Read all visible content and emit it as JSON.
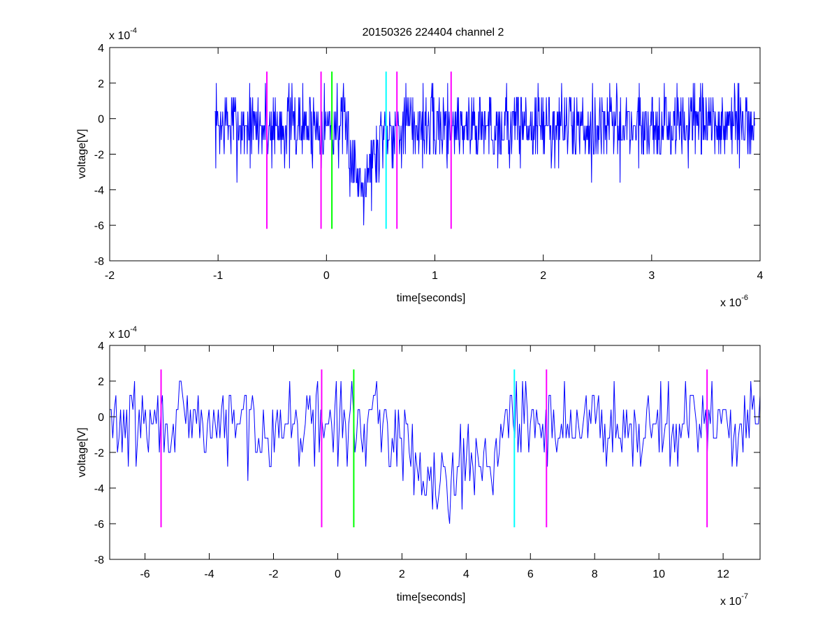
{
  "figure": {
    "title": "20150326 224404 channel 2"
  },
  "chart_data": [
    {
      "type": "line",
      "title": "20150326 224404 channel 2",
      "xlabel": "time[seconds]",
      "ylabel": "voltage[V]",
      "x_scale_label": "x 10",
      "x_scale_exp": "-6",
      "y_scale_label": "x 10",
      "y_scale_exp": "-4",
      "xlim": [
        -2,
        4
      ],
      "ylim": [
        -8,
        4
      ],
      "x_ticks": [
        -2,
        -1,
        0,
        1,
        2,
        3,
        4
      ],
      "y_ticks": [
        -8,
        -6,
        -4,
        -2,
        0,
        2,
        4
      ],
      "grid": false,
      "signal": {
        "color": "#0000ff",
        "x_start": -1.03,
        "x_end": 3.95,
        "baseline": -0.4,
        "noise": 1.1,
        "dip_start": 0.15,
        "dip_bottom": 0.3,
        "dip_end": 0.5,
        "dip_level": -3.5
      },
      "markers": [
        {
          "x": -0.55,
          "ymin": -6.2,
          "ymax": 2.65,
          "color": "#ff00ff"
        },
        {
          "x": -0.05,
          "ymin": -6.2,
          "ymax": 2.65,
          "color": "#ff00ff"
        },
        {
          "x": 0.05,
          "ymin": -6.2,
          "ymax": 2.65,
          "color": "#00ff00"
        },
        {
          "x": 0.55,
          "ymin": -6.2,
          "ymax": 2.65,
          "color": "#00ffff"
        },
        {
          "x": 0.65,
          "ymin": -6.2,
          "ymax": 2.65,
          "color": "#ff00ff"
        },
        {
          "x": 1.15,
          "ymin": -6.2,
          "ymax": 2.65,
          "color": "#ff00ff"
        }
      ]
    },
    {
      "type": "line",
      "title": "",
      "xlabel": "time[seconds]",
      "ylabel": "voltage[V]",
      "x_scale_label": "x 10",
      "x_scale_exp": "-7",
      "y_scale_label": "x 10",
      "y_scale_exp": "-4",
      "xlim": [
        -7.1,
        13.15
      ],
      "ylim": [
        -8,
        4
      ],
      "x_ticks": [
        -6,
        -4,
        -2,
        0,
        2,
        4,
        6,
        8,
        10,
        12
      ],
      "y_ticks": [
        -8,
        -6,
        -4,
        -2,
        0,
        2,
        4
      ],
      "grid": false,
      "signal": {
        "color": "#0000ff",
        "x_start": -7.1,
        "x_end": 13.15,
        "baseline": -0.4,
        "noise": 1.1,
        "dip_start": 1.5,
        "dip_bottom": 3.0,
        "dip_end": 5.0,
        "dip_level": -3.5
      },
      "markers": [
        {
          "x": -5.5,
          "ymin": -6.2,
          "ymax": 2.65,
          "color": "#ff00ff"
        },
        {
          "x": -0.5,
          "ymin": -6.2,
          "ymax": 2.65,
          "color": "#ff00ff"
        },
        {
          "x": 0.5,
          "ymin": -6.2,
          "ymax": 2.65,
          "color": "#00ff00"
        },
        {
          "x": 5.5,
          "ymin": -6.2,
          "ymax": 2.65,
          "color": "#00ffff"
        },
        {
          "x": 6.5,
          "ymin": -6.2,
          "ymax": 2.65,
          "color": "#ff00ff"
        },
        {
          "x": 11.5,
          "ymin": -6.2,
          "ymax": 2.65,
          "color": "#ff00ff"
        }
      ]
    }
  ]
}
